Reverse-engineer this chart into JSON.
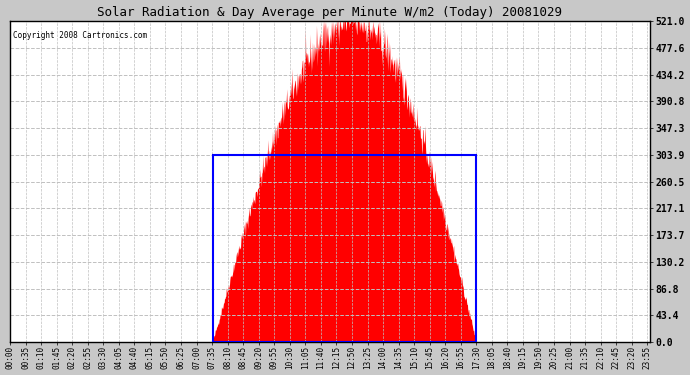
{
  "title": "Solar Radiation & Day Average per Minute W/m2 (Today) 20081029",
  "copyright": "Copyright 2008 Cartronics.com",
  "ymax": 521.0,
  "yticks": [
    0.0,
    43.4,
    86.8,
    130.2,
    173.7,
    217.1,
    260.5,
    303.9,
    347.3,
    390.8,
    434.2,
    477.6,
    521.0
  ],
  "bg_color": "#c8c8c8",
  "plot_bg_color": "#ffffff",
  "bar_color": "#ff0000",
  "avg_box_color": "#0000ff",
  "hgrid_color": "#c0c0c0",
  "vgrid_color": "#c0c0c0",
  "title_color": "#000000",
  "avg_value": 303.9,
  "sunrise_hour": 7.6,
  "sunset_hour": 17.5,
  "peak_hour": 12.85,
  "peak_value": 521.0,
  "total_points": 1440,
  "tick_interval_minutes": 35,
  "figwidth": 6.9,
  "figheight": 3.75,
  "dpi": 100
}
